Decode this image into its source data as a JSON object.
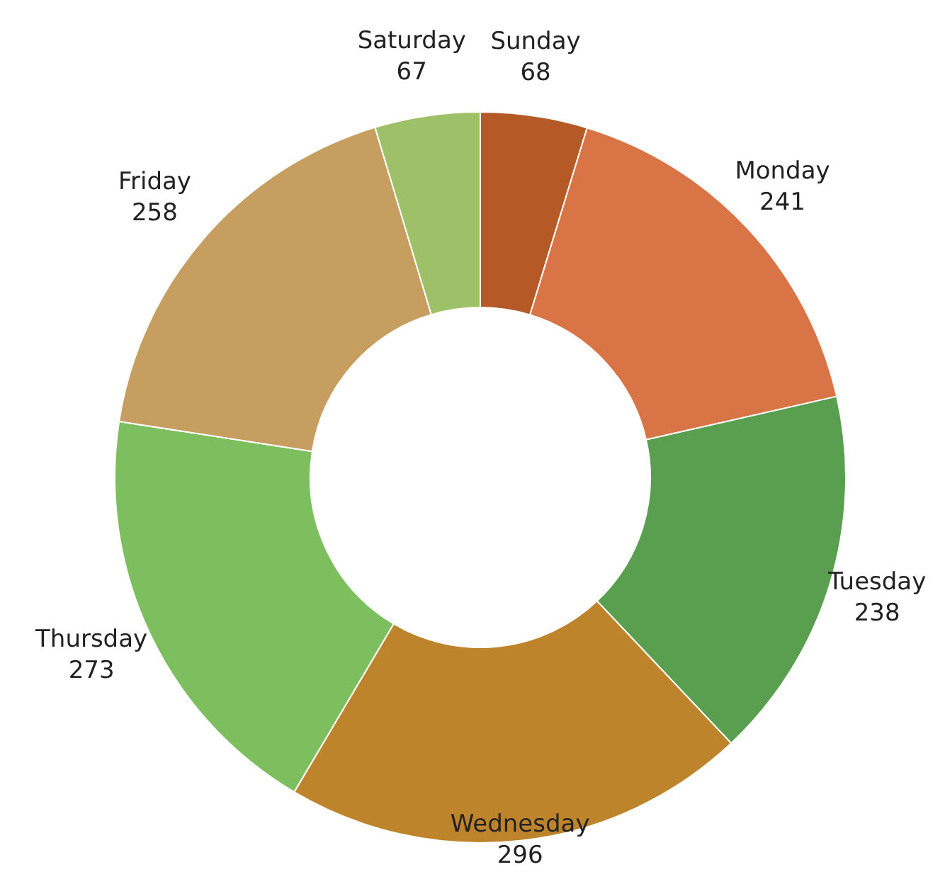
{
  "chart_data": {
    "type": "donut",
    "categories": [
      "Sunday",
      "Monday",
      "Tuesday",
      "Wednesday",
      "Thursday",
      "Friday",
      "Saturday"
    ],
    "values": [
      68,
      241,
      238,
      296,
      273,
      258,
      67
    ],
    "colors": [
      "#b55a27",
      "#d97446",
      "#5a9e50",
      "#be842c",
      "#7dbf5f",
      "#c69e60",
      "#9dc068"
    ],
    "data_labels": true
  }
}
